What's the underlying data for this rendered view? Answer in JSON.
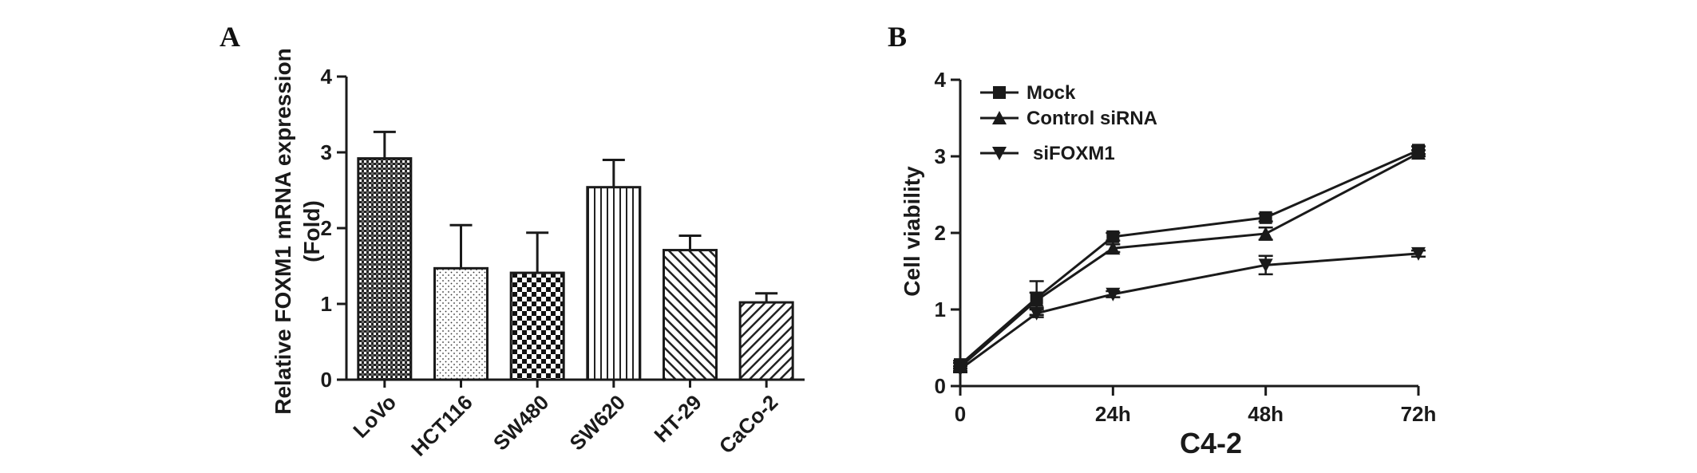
{
  "chart_data": [
    {
      "panel": "A",
      "type": "bar",
      "title": "",
      "ylabel_line1": "Relative FOXM1 mRNA expression",
      "ylabel_line2": "(Fold)",
      "xlabel": "",
      "ylim": [
        0,
        4
      ],
      "yticks": [
        "0",
        "1",
        "2",
        "3",
        "4"
      ],
      "categories": [
        "LoVo",
        "HCT116",
        "SW480",
        "SW620",
        "HT-29",
        "CaCo-2"
      ],
      "values": [
        2.92,
        1.47,
        1.41,
        2.54,
        1.71,
        1.02
      ],
      "errors": [
        0.35,
        0.57,
        0.53,
        0.36,
        0.19,
        0.12
      ],
      "patterns": [
        "crosshatch-dense",
        "dots",
        "checker",
        "vertical-lines",
        "diagonal-up",
        "diagonal-down"
      ],
      "grid": false
    },
    {
      "panel": "B",
      "type": "line",
      "title": "",
      "ylabel": "Cell viability",
      "xlabel": "C4-2",
      "ylim": [
        0,
        4
      ],
      "yticks": [
        "0",
        "1",
        "2",
        "3",
        "4"
      ],
      "xlim": [
        0,
        72
      ],
      "xtick_values": [
        0,
        24,
        48,
        72
      ],
      "xticks": [
        "0",
        "24h",
        "48h",
        "72h"
      ],
      "legend_position": "top-left",
      "grid": false,
      "series": [
        {
          "name": "Mock",
          "marker": "square",
          "x": [
            0,
            12,
            24,
            48,
            72
          ],
          "y": [
            0.28,
            1.15,
            1.95,
            2.2,
            3.08
          ],
          "err": [
            0.05,
            0.22,
            0.05,
            0.05,
            0.05
          ]
        },
        {
          "name": "Control siRNA",
          "marker": "triangle-up",
          "x": [
            0,
            12,
            24,
            48,
            72
          ],
          "y": [
            0.25,
            1.12,
            1.8,
            1.99,
            3.04
          ],
          "err": [
            0.05,
            0.1,
            0.05,
            0.08,
            0.04
          ]
        },
        {
          "name": "siFOXM1",
          "marker": "triangle-down",
          "x": [
            0,
            12,
            24,
            48,
            72
          ],
          "y": [
            0.22,
            0.95,
            1.2,
            1.58,
            1.73
          ],
          "err": [
            0.04,
            0.05,
            0.04,
            0.12,
            0.04
          ]
        }
      ]
    }
  ],
  "colors": {
    "ink": "#1a1a1a",
    "background": "#ffffff"
  }
}
